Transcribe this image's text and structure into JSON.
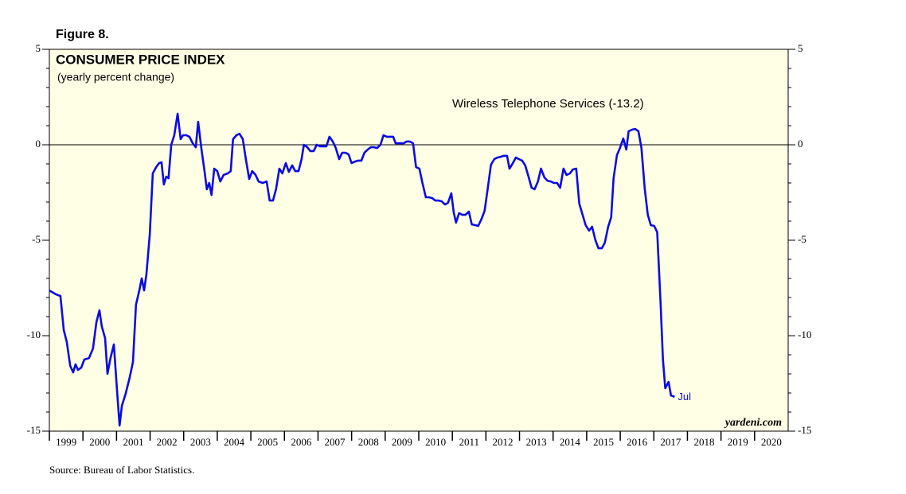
{
  "figure_label": "Figure 8.",
  "source": "Source: Bureau of Labor Statistics.",
  "chart_data": {
    "type": "line",
    "title": "CONSUMER PRICE INDEX",
    "subtitle": "(yearly percent change)",
    "watermark": "yardeni.com",
    "end_label": "Jul",
    "xlim": [
      1999,
      2021
    ],
    "xticks": [
      {
        "value": 1999.5,
        "label": "1999"
      },
      {
        "value": 2000.5,
        "label": "2000"
      },
      {
        "value": 2001.5,
        "label": "2001"
      },
      {
        "value": 2002.5,
        "label": "2002"
      },
      {
        "value": 2003.5,
        "label": "2003"
      },
      {
        "value": 2004.5,
        "label": "2004"
      },
      {
        "value": 2005.5,
        "label": "2005"
      },
      {
        "value": 2006.5,
        "label": "2006"
      },
      {
        "value": 2007.5,
        "label": "2007"
      },
      {
        "value": 2008.5,
        "label": "2008"
      },
      {
        "value": 2009.5,
        "label": "2009"
      },
      {
        "value": 2010.5,
        "label": "2010"
      },
      {
        "value": 2011.5,
        "label": "2011"
      },
      {
        "value": 2012.5,
        "label": "2012"
      },
      {
        "value": 2013.5,
        "label": "2013"
      },
      {
        "value": 2014.5,
        "label": "2014"
      },
      {
        "value": 2015.5,
        "label": "2015"
      },
      {
        "value": 2016.5,
        "label": "2016"
      },
      {
        "value": 2017.5,
        "label": "2017"
      },
      {
        "value": 2018.5,
        "label": "2018"
      },
      {
        "value": 2019.5,
        "label": "2019"
      },
      {
        "value": 2020.5,
        "label": "2020"
      }
    ],
    "ylim": [
      -15,
      5
    ],
    "yticks": [
      5,
      0,
      -5,
      -10,
      -15
    ],
    "y2lim": [
      -15,
      5
    ],
    "y2ticks": [
      5,
      0,
      -5,
      -10,
      -15
    ],
    "zero_line": true,
    "x": [
      1999.0,
      1999.19,
      1999.33,
      1999.43,
      1999.52,
      1999.62,
      1999.71,
      1999.78,
      1999.85,
      1999.95,
      2000.04,
      2000.18,
      2000.3,
      2000.4,
      2000.49,
      2000.56,
      2000.66,
      2000.73,
      2000.82,
      2000.92,
      2001.01,
      2001.09,
      2001.16,
      2001.27,
      2001.39,
      2001.49,
      2001.58,
      2001.68,
      2001.75,
      2001.82,
      2001.89,
      2001.99,
      2002.08,
      2002.18,
      2002.27,
      2002.34,
      2002.41,
      2002.48,
      2002.55,
      2002.63,
      2002.72,
      2002.82,
      2002.91,
      2002.98,
      2003.08,
      2003.17,
      2003.27,
      2003.36,
      2003.43,
      2003.53,
      2003.62,
      2003.69,
      2003.76,
      2003.83,
      2003.91,
      2004.0,
      2004.09,
      2004.19,
      2004.31,
      2004.4,
      2004.47,
      2004.57,
      2004.66,
      2004.76,
      2004.85,
      2004.95,
      2005.04,
      2005.14,
      2005.23,
      2005.35,
      2005.47,
      2005.56,
      2005.66,
      2005.75,
      2005.85,
      2005.94,
      2006.04,
      2006.13,
      2006.23,
      2006.32,
      2006.42,
      2006.51,
      2006.58,
      2006.68,
      2006.77,
      2006.87,
      2006.96,
      2007.06,
      2007.15,
      2007.25,
      2007.34,
      2007.44,
      2007.53,
      2007.63,
      2007.72,
      2007.82,
      2007.91,
      2008.0,
      2008.1,
      2008.19,
      2008.29,
      2008.38,
      2008.48,
      2008.57,
      2008.67,
      2008.76,
      2008.86,
      2008.95,
      2009.05,
      2009.14,
      2009.24,
      2009.31,
      2009.43,
      2009.55,
      2009.64,
      2009.73,
      2009.83,
      2009.92,
      2010.02,
      2010.11,
      2010.21,
      2010.3,
      2010.4,
      2010.49,
      2010.59,
      2010.68,
      2010.78,
      2010.87,
      2010.97,
      2011.04,
      2011.11,
      2011.2,
      2011.3,
      2011.39,
      2011.49,
      2011.58,
      2011.68,
      2011.77,
      2011.87,
      2011.96,
      2012.06,
      2012.15,
      2012.25,
      2012.34,
      2012.44,
      2012.53,
      2012.63,
      2012.7,
      2012.79,
      2012.89,
      2012.98,
      2013.08,
      2013.17,
      2013.27,
      2013.36,
      2013.45,
      2013.55,
      2013.64,
      2013.74,
      2013.83,
      2013.93,
      2014.02,
      2014.12,
      2014.21,
      2014.31,
      2014.4,
      2014.5,
      2014.59,
      2014.69,
      2014.78,
      2014.88,
      2014.97,
      2015.07,
      2015.16,
      2015.26,
      2015.35,
      2015.45,
      2015.54,
      2015.64,
      2015.73,
      2015.8,
      2015.9,
      2015.99,
      2016.09,
      2016.18,
      2016.25,
      2016.35,
      2016.44,
      2016.54,
      2016.63,
      2016.73,
      2016.82,
      2016.91,
      2017.01,
      2017.1,
      2017.2,
      2017.27,
      2017.34,
      2017.44,
      2017.51,
      2017.62
    ],
    "series": [
      {
        "name": "Wireless Telephone Services (-13.2)",
        "color": "#0a0aeb",
        "values": [
          -7.63,
          -7.83,
          -7.92,
          -9.71,
          -10.33,
          -11.58,
          -11.92,
          -11.5,
          -11.79,
          -11.67,
          -11.25,
          -11.17,
          -10.67,
          -9.29,
          -8.67,
          -9.5,
          -10.13,
          -12.0,
          -11.17,
          -10.46,
          -12.75,
          -14.71,
          -13.67,
          -13.04,
          -12.21,
          -11.38,
          -8.38,
          -7.63,
          -7.0,
          -7.63,
          -6.79,
          -4.71,
          -1.5,
          -1.17,
          -0.96,
          -0.92,
          -2.08,
          -1.67,
          -1.75,
          0,
          0.5,
          1.63,
          0.29,
          0.5,
          0.5,
          0.42,
          0.08,
          -0.13,
          1.21,
          -0.25,
          -1.38,
          -2.33,
          -2.0,
          -2.63,
          -1.25,
          -1.38,
          -1.92,
          -1.58,
          -1.5,
          -1.38,
          0.29,
          0.5,
          0.58,
          0.29,
          -0.75,
          -1.79,
          -1.38,
          -1.58,
          -1.92,
          -2.0,
          -1.92,
          -2.92,
          -2.92,
          -2.33,
          -1.25,
          -1.5,
          -0.96,
          -1.42,
          -1.08,
          -1.38,
          -1.38,
          -0.75,
          0,
          -0.13,
          -0.33,
          -0.33,
          0,
          -0.08,
          -0.08,
          -0.08,
          0.42,
          0.17,
          -0.17,
          -0.75,
          -0.42,
          -0.42,
          -0.5,
          -0.96,
          -0.88,
          -0.83,
          -0.83,
          -0.42,
          -0.25,
          -0.13,
          -0.13,
          -0.17,
          0,
          0.5,
          0.42,
          0.42,
          0.42,
          0.08,
          0.08,
          0.08,
          0.17,
          0.17,
          0.08,
          -1.17,
          -1.25,
          -2.0,
          -2.75,
          -2.75,
          -2.79,
          -2.92,
          -2.92,
          -2.96,
          -3.13,
          -3.04,
          -2.54,
          -3.54,
          -4.08,
          -3.58,
          -3.67,
          -3.67,
          -3.5,
          -4.17,
          -4.21,
          -4.25,
          -3.88,
          -3.46,
          -2.21,
          -1.04,
          -0.75,
          -0.67,
          -0.63,
          -0.58,
          -0.58,
          -1.25,
          -1.0,
          -0.67,
          -0.75,
          -0.83,
          -1.08,
          -1.67,
          -2.25,
          -2.33,
          -1.92,
          -1.25,
          -1.71,
          -1.88,
          -1.92,
          -2.0,
          -2.0,
          -2.25,
          -1.25,
          -1.58,
          -1.5,
          -1.29,
          -1.25,
          -3.08,
          -3.67,
          -4.21,
          -4.5,
          -4.29,
          -5.0,
          -5.42,
          -5.42,
          -5.13,
          -4.29,
          -3.79,
          -1.75,
          -0.54,
          -0.17,
          0.33,
          -0.25,
          0.71,
          0.79,
          0.83,
          0.71,
          -0.17,
          -2.33,
          -3.67,
          -4.21,
          -4.25,
          -4.58,
          -8.25,
          -11.25,
          -12.75,
          -12.42,
          -13.13,
          -13.2
        ]
      }
    ]
  }
}
